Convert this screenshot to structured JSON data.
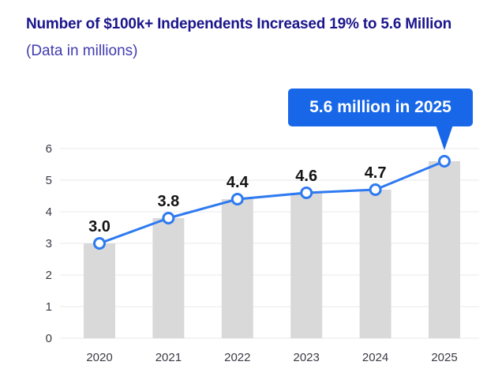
{
  "colors": {
    "title": "#1b158c",
    "subtitle": "#403bb0",
    "bar": "#d9d9d9",
    "line": "#2e7af0",
    "marker_fill": "#ffffff",
    "grid": "#e8e8e8",
    "axis_text": "#3a3a44",
    "point_label": "#141414",
    "annotation_bg": "#1767e8",
    "annotation_text": "#ffffff"
  },
  "chart_data": {
    "type": "bar",
    "title": "Number of $100k+ Independents Increased 19% to 5.6 Million",
    "subtitle": "(Data in millions)",
    "categories": [
      "2020",
      "2021",
      "2022",
      "2023",
      "2024",
      "2025"
    ],
    "series": [
      {
        "name": "independents-bars",
        "type": "bar",
        "values": [
          3.0,
          3.8,
          4.4,
          4.6,
          4.7,
          5.6
        ]
      },
      {
        "name": "independents-line",
        "type": "line",
        "values": [
          3.0,
          3.8,
          4.4,
          4.6,
          4.7,
          5.6
        ]
      }
    ],
    "point_labels": [
      "3.0",
      "3.8",
      "4.4",
      "4.6",
      "4.7",
      null
    ],
    "annotation": {
      "text": "5.6 million in 2025",
      "target_category": "2025",
      "target_index": 5
    },
    "xlabel": "",
    "ylabel": "",
    "ylim": [
      0,
      6
    ],
    "y_ticks": [
      0,
      1,
      2,
      3,
      4,
      5,
      6
    ],
    "grid": "horizontal",
    "legend": "none"
  }
}
